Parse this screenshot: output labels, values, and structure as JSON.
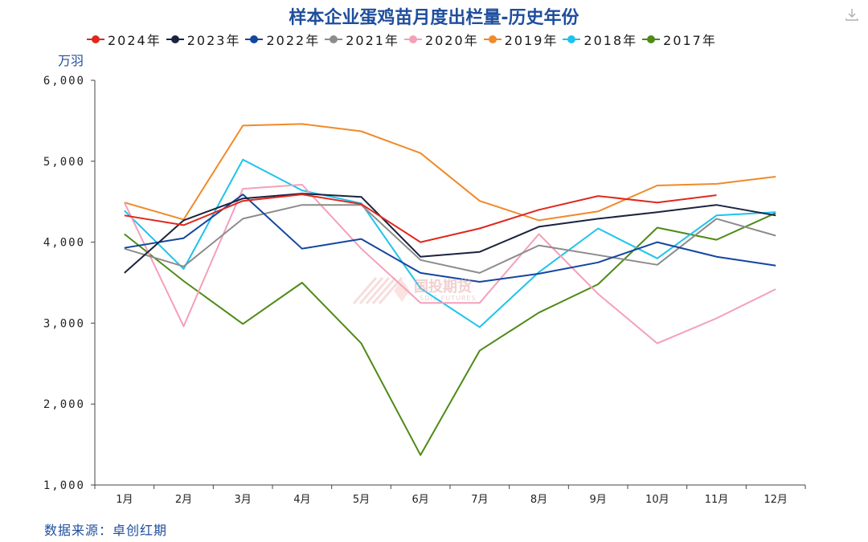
{
  "title": "样本企业蛋鸡苗月度出栏量-历史年份",
  "y_unit": "万羽",
  "source": "数据来源：卓创红期",
  "watermark": {
    "main": "国投期货",
    "sub": "SDIC FUTURES"
  },
  "icons": {
    "download": "download-icon",
    "watermark": "logo-stripes-icon"
  },
  "chart_data": {
    "type": "line",
    "categories": [
      "1月",
      "2月",
      "3月",
      "4月",
      "5月",
      "6月",
      "7月",
      "8月",
      "9月",
      "10月",
      "11月",
      "12月"
    ],
    "ylim": [
      1000,
      6000
    ],
    "yticks": [
      1000,
      2000,
      3000,
      4000,
      5000,
      6000
    ],
    "ytick_labels": [
      "1,000",
      "2,000",
      "3,000",
      "4,000",
      "5,000",
      "6,000"
    ],
    "grid": false,
    "legend_position": "top",
    "series": [
      {
        "name": "2024年",
        "color": "#e0281e",
        "values": [
          4330,
          4210,
          4510,
          4590,
          4470,
          4000,
          4170,
          4400,
          4570,
          4490,
          4580,
          null
        ]
      },
      {
        "name": "2023年",
        "color": "#1b2340",
        "values": [
          3620,
          4270,
          4540,
          4600,
          4560,
          3820,
          3880,
          4190,
          4290,
          4370,
          4460,
          4330
        ]
      },
      {
        "name": "2022年",
        "color": "#1346a0",
        "values": [
          3930,
          4050,
          4590,
          3920,
          4040,
          3620,
          3510,
          3610,
          3750,
          4000,
          3820,
          3710
        ]
      },
      {
        "name": "2021年",
        "color": "#8c8c8c",
        "values": [
          3920,
          3700,
          4290,
          4460,
          4460,
          3780,
          3620,
          3960,
          3840,
          3720,
          4290,
          4080
        ]
      },
      {
        "name": "2020年",
        "color": "#f4a0b8",
        "values": [
          4490,
          2960,
          4660,
          4710,
          3920,
          3250,
          3250,
          4100,
          3360,
          2750,
          3060,
          3420
        ]
      },
      {
        "name": "2019年",
        "color": "#f08a2a",
        "values": [
          4490,
          4280,
          5440,
          5460,
          5370,
          5100,
          4510,
          4270,
          4380,
          4700,
          4720,
          4810
        ]
      },
      {
        "name": "2018年",
        "color": "#1ec3ec",
        "values": [
          4390,
          3670,
          5020,
          4640,
          4480,
          3430,
          2950,
          3630,
          4170,
          3800,
          4330,
          4370
        ]
      },
      {
        "name": "2017年",
        "color": "#4e8a16",
        "values": [
          4100,
          3520,
          2990,
          3500,
          2750,
          1370,
          2660,
          3130,
          3480,
          4180,
          4030,
          4360
        ]
      }
    ]
  }
}
